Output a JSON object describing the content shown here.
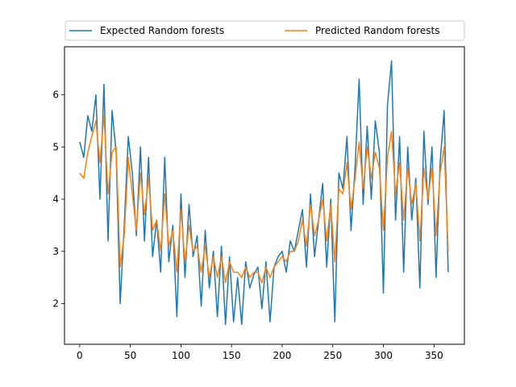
{
  "chart_data": {
    "type": "line",
    "title": "",
    "xlabel": "",
    "ylabel": "",
    "xlim": [
      -15,
      380
    ],
    "ylim": [
      1.22,
      6.92
    ],
    "xticks": [
      0,
      50,
      100,
      150,
      200,
      250,
      300,
      350
    ],
    "yticks": [
      2,
      3,
      4,
      5,
      6
    ],
    "grid": false,
    "legend": {
      "placement": "top, above plot, two columns"
    },
    "series": [
      {
        "name": "Expected Random forests",
        "color": "#1f77b4",
        "x": [
          0,
          4,
          8,
          12,
          16,
          20,
          24,
          28,
          32,
          36,
          40,
          44,
          48,
          52,
          56,
          60,
          64,
          68,
          72,
          76,
          80,
          84,
          88,
          92,
          96,
          100,
          104,
          108,
          112,
          116,
          120,
          124,
          128,
          132,
          136,
          140,
          144,
          148,
          152,
          156,
          160,
          164,
          168,
          172,
          176,
          180,
          184,
          188,
          192,
          196,
          200,
          204,
          208,
          212,
          216,
          220,
          224,
          228,
          232,
          236,
          240,
          244,
          248,
          252,
          256,
          260,
          264,
          268,
          272,
          276,
          280,
          284,
          288,
          292,
          296,
          300,
          304,
          308,
          312,
          316,
          320,
          324,
          328,
          332,
          336,
          340,
          344,
          348,
          352,
          356,
          360,
          364
        ],
        "values": [
          5.1,
          4.8,
          5.6,
          5.3,
          6.0,
          4.0,
          6.2,
          3.2,
          5.7,
          4.9,
          2.0,
          3.5,
          5.2,
          4.5,
          3.3,
          5.0,
          3.2,
          4.8,
          2.9,
          3.6,
          2.6,
          4.8,
          2.8,
          3.5,
          1.75,
          4.1,
          2.5,
          3.9,
          2.9,
          3.3,
          1.95,
          3.4,
          2.3,
          3.0,
          1.75,
          3.1,
          1.6,
          2.9,
          1.65,
          2.5,
          1.6,
          2.8,
          2.3,
          2.55,
          2.7,
          1.9,
          2.8,
          1.65,
          2.7,
          2.9,
          3.0,
          2.6,
          3.2,
          3.0,
          3.4,
          3.8,
          2.7,
          4.1,
          2.9,
          3.6,
          4.3,
          2.7,
          4.0,
          1.65,
          4.5,
          4.2,
          5.2,
          3.4,
          4.6,
          6.3,
          3.9,
          5.4,
          4.0,
          5.5,
          4.9,
          2.2,
          5.8,
          6.65,
          3.6,
          5.2,
          2.6,
          5.0,
          3.6,
          4.4,
          2.3,
          5.3,
          3.9,
          5.0,
          2.5,
          4.7,
          5.7,
          2.6
        ]
      },
      {
        "name": "Predicted Random forests",
        "color": "#ff7f0e",
        "x": [
          0,
          4,
          8,
          12,
          16,
          20,
          24,
          28,
          32,
          36,
          40,
          44,
          48,
          52,
          56,
          60,
          64,
          68,
          72,
          76,
          80,
          84,
          88,
          92,
          96,
          100,
          104,
          108,
          112,
          116,
          120,
          124,
          128,
          132,
          136,
          140,
          144,
          148,
          152,
          156,
          160,
          164,
          168,
          172,
          176,
          180,
          184,
          188,
          192,
          196,
          200,
          204,
          208,
          212,
          216,
          220,
          224,
          228,
          232,
          236,
          240,
          244,
          248,
          252,
          256,
          260,
          264,
          268,
          272,
          276,
          280,
          284,
          288,
          292,
          296,
          300,
          304,
          308,
          312,
          316,
          320,
          324,
          328,
          332,
          336,
          340,
          344,
          348,
          352,
          356,
          360,
          364
        ],
        "values": [
          4.5,
          4.4,
          4.9,
          5.2,
          5.5,
          4.7,
          5.6,
          4.1,
          4.9,
          5.0,
          2.7,
          3.3,
          4.8,
          4.1,
          3.4,
          4.5,
          3.7,
          4.4,
          3.4,
          3.6,
          3.0,
          4.1,
          3.1,
          3.4,
          2.6,
          3.8,
          2.8,
          3.5,
          3.0,
          3.1,
          2.6,
          3.1,
          2.5,
          2.9,
          2.5,
          2.9,
          2.4,
          2.8,
          2.6,
          2.6,
          2.5,
          2.7,
          2.5,
          2.6,
          2.6,
          2.4,
          2.7,
          2.5,
          2.7,
          2.8,
          2.9,
          2.8,
          3.0,
          3.0,
          3.2,
          3.6,
          3.1,
          3.9,
          3.3,
          3.6,
          4.0,
          3.2,
          3.9,
          2.8,
          4.2,
          4.1,
          4.7,
          3.8,
          4.4,
          5.1,
          4.2,
          5.0,
          4.4,
          4.9,
          4.6,
          3.4,
          4.8,
          5.3,
          4.1,
          4.7,
          3.6,
          4.6,
          3.9,
          4.3,
          3.2,
          4.6,
          4.0,
          4.6,
          3.3,
          4.5,
          5.0,
          3.0
        ]
      }
    ]
  }
}
